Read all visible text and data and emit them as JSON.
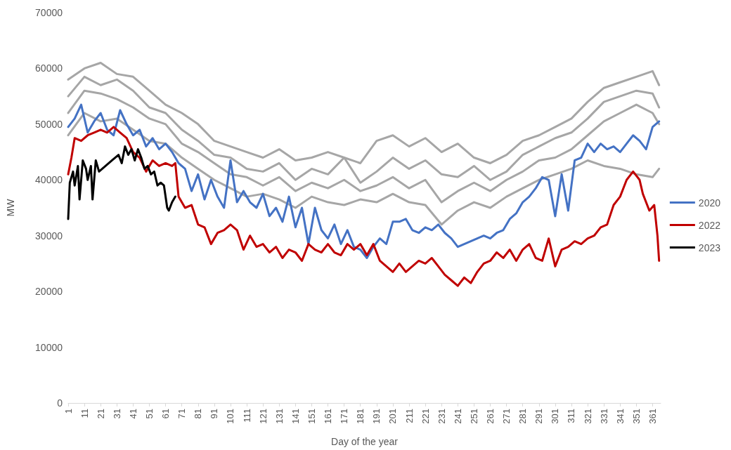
{
  "chart_data": {
    "type": "line",
    "xlabel": "Day of the year",
    "ylabel": "MW",
    "xlim": [
      1,
      366
    ],
    "xticks": [
      1,
      11,
      21,
      31,
      41,
      51,
      61,
      71,
      81,
      91,
      101,
      111,
      121,
      131,
      141,
      151,
      161,
      171,
      181,
      191,
      201,
      211,
      221,
      231,
      241,
      251,
      261,
      271,
      281,
      291,
      301,
      311,
      321,
      331,
      341,
      351,
      361
    ],
    "ylim": [
      0,
      70000
    ],
    "yticks": [
      0,
      10000,
      20000,
      30000,
      40000,
      50000,
      60000,
      70000
    ],
    "grid": false,
    "legend": "right",
    "marker": "none",
    "line_style": "solid",
    "series": [
      {
        "color": "#a6a6a6",
        "x": [
          1,
          11,
          21,
          31,
          41,
          51,
          61,
          71,
          81,
          91,
          101,
          111,
          121,
          131,
          141,
          151,
          161,
          171,
          181,
          191,
          201,
          211,
          221,
          231,
          241,
          251,
          261,
          271,
          281,
          291,
          301,
          311,
          321,
          331,
          341,
          351,
          361,
          365
        ],
        "values": [
          58000,
          60000,
          61000,
          59000,
          58500,
          56000,
          53500,
          52000,
          50000,
          47000,
          46000,
          45000,
          44000,
          45500,
          43500,
          44000,
          45000,
          44000,
          43000,
          47000,
          48000,
          46000,
          47500,
          45000,
          46500,
          44000,
          43000,
          44500,
          47000,
          48000,
          49500,
          51000,
          54000,
          56500,
          57500,
          58500,
          59500,
          57000
        ]
      },
      {
        "color": "#a6a6a6",
        "x": [
          1,
          11,
          21,
          31,
          41,
          51,
          61,
          71,
          81,
          91,
          101,
          111,
          121,
          131,
          141,
          151,
          161,
          171,
          181,
          191,
          201,
          211,
          221,
          231,
          241,
          251,
          261,
          271,
          281,
          291,
          301,
          311,
          321,
          331,
          341,
          351,
          361,
          365
        ],
        "values": [
          55000,
          58500,
          57000,
          58000,
          56000,
          53000,
          52000,
          49000,
          47000,
          44500,
          44000,
          42000,
          41500,
          43000,
          40000,
          42000,
          41000,
          44000,
          39500,
          41500,
          44000,
          42000,
          43500,
          41000,
          40500,
          42500,
          40000,
          41500,
          44500,
          46000,
          47500,
          48500,
          51000,
          54000,
          55000,
          56000,
          55500,
          53000
        ]
      },
      {
        "color": "#a6a6a6",
        "x": [
          1,
          11,
          21,
          31,
          41,
          51,
          61,
          71,
          81,
          91,
          101,
          111,
          121,
          131,
          141,
          151,
          161,
          171,
          181,
          191,
          201,
          211,
          221,
          231,
          241,
          251,
          261,
          271,
          281,
          291,
          301,
          311,
          321,
          331,
          341,
          351,
          361,
          365
        ],
        "values": [
          52000,
          56000,
          55500,
          54500,
          53000,
          51000,
          50000,
          46500,
          45000,
          43000,
          41000,
          40500,
          39000,
          40500,
          38000,
          39500,
          38500,
          40000,
          38000,
          39000,
          40500,
          38500,
          40000,
          36000,
          38000,
          39500,
          38000,
          40000,
          41500,
          43500,
          44000,
          45500,
          48000,
          50500,
          52000,
          53500,
          52000,
          50000
        ]
      },
      {
        "color": "#a6a6a6",
        "x": [
          1,
          11,
          21,
          31,
          41,
          51,
          61,
          71,
          81,
          91,
          101,
          111,
          121,
          131,
          141,
          151,
          161,
          171,
          181,
          191,
          201,
          211,
          221,
          231,
          241,
          251,
          261,
          271,
          281,
          291,
          301,
          311,
          321,
          331,
          341,
          351,
          361,
          365
        ],
        "values": [
          48000,
          52000,
          50500,
          51000,
          49000,
          47000,
          46500,
          44000,
          42000,
          40000,
          38500,
          37000,
          37500,
          36500,
          35000,
          37000,
          36000,
          35500,
          36500,
          36000,
          37500,
          36000,
          35500,
          32000,
          34500,
          36000,
          35000,
          37000,
          38500,
          40000,
          41000,
          42000,
          43500,
          42500,
          42000,
          41000,
          40500,
          42000
        ]
      },
      {
        "name": "2020",
        "color": "#4472c4",
        "x": [
          1,
          5,
          9,
          13,
          17,
          21,
          25,
          29,
          33,
          37,
          41,
          45,
          49,
          53,
          57,
          61,
          65,
          69,
          73,
          77,
          81,
          85,
          89,
          93,
          97,
          101,
          105,
          109,
          113,
          117,
          121,
          125,
          129,
          133,
          137,
          141,
          145,
          149,
          153,
          157,
          161,
          165,
          169,
          173,
          177,
          181,
          185,
          189,
          193,
          197,
          201,
          205,
          209,
          213,
          217,
          221,
          225,
          229,
          233,
          237,
          241,
          245,
          249,
          253,
          257,
          261,
          265,
          269,
          273,
          277,
          281,
          285,
          289,
          293,
          297,
          301,
          305,
          309,
          313,
          317,
          321,
          325,
          329,
          333,
          337,
          341,
          345,
          349,
          353,
          357,
          361,
          365
        ],
        "values": [
          49500,
          51000,
          53500,
          48500,
          50500,
          52000,
          49000,
          48000,
          52500,
          50000,
          48000,
          49000,
          46000,
          47500,
          45500,
          46500,
          45000,
          43000,
          42000,
          38000,
          41000,
          36500,
          40000,
          37000,
          35000,
          43500,
          36000,
          38000,
          36000,
          35000,
          37500,
          33500,
          35000,
          32500,
          37000,
          31500,
          35000,
          28500,
          35000,
          31000,
          29500,
          32000,
          28500,
          31000,
          28000,
          27500,
          26000,
          28000,
          29500,
          28500,
          32500,
          32500,
          33000,
          31000,
          30500,
          31500,
          31000,
          32000,
          30500,
          29500,
          28000,
          28500,
          29000,
          29500,
          30000,
          29500,
          30500,
          31000,
          33000,
          34000,
          36000,
          37000,
          38500,
          40500,
          40000,
          33500,
          41000,
          34500,
          43500,
          44000,
          46500,
          45000,
          46500,
          45500,
          46000,
          45000,
          46500,
          48000,
          47000,
          45500,
          49500,
          50500
        ]
      },
      {
        "name": "2022",
        "color": "#c00000",
        "x": [
          1,
          3,
          5,
          9,
          13,
          17,
          21,
          25,
          29,
          33,
          37,
          41,
          45,
          49,
          53,
          57,
          61,
          65,
          67,
          69,
          73,
          77,
          81,
          85,
          89,
          93,
          97,
          101,
          105,
          109,
          113,
          117,
          121,
          125,
          129,
          133,
          137,
          141,
          145,
          149,
          153,
          157,
          161,
          165,
          169,
          173,
          177,
          181,
          185,
          189,
          193,
          197,
          201,
          205,
          209,
          213,
          217,
          221,
          225,
          229,
          233,
          237,
          241,
          245,
          249,
          253,
          257,
          261,
          265,
          269,
          273,
          277,
          281,
          285,
          289,
          293,
          297,
          301,
          305,
          309,
          313,
          317,
          321,
          325,
          329,
          333,
          337,
          341,
          345,
          349,
          353,
          355,
          359,
          362,
          364,
          365
        ],
        "values": [
          41000,
          44000,
          47500,
          47000,
          48000,
          48500,
          49000,
          48500,
          49500,
          48500,
          47500,
          45000,
          44000,
          41500,
          43500,
          42500,
          43000,
          42500,
          43000,
          37000,
          35000,
          35500,
          32000,
          31500,
          28500,
          30500,
          31000,
          32000,
          31000,
          27500,
          30000,
          28000,
          28500,
          27000,
          28000,
          26000,
          27500,
          27000,
          25500,
          28500,
          27500,
          27000,
          28500,
          27000,
          26500,
          28500,
          27500,
          28500,
          26500,
          28500,
          25500,
          24500,
          23500,
          25000,
          23500,
          24500,
          25500,
          25000,
          26000,
          24500,
          23000,
          22000,
          21000,
          22500,
          21500,
          23500,
          25000,
          25500,
          27000,
          26000,
          27500,
          25500,
          27500,
          28500,
          26000,
          25500,
          29500,
          24500,
          27500,
          28000,
          29000,
          28500,
          29500,
          30000,
          31500,
          32000,
          35500,
          37000,
          40000,
          41500,
          40000,
          37500,
          34500,
          35500,
          30000,
          25500
        ]
      },
      {
        "name": "2023",
        "color": "#000000",
        "x": [
          1,
          2,
          4,
          5,
          7,
          8,
          10,
          12,
          13,
          15,
          16,
          18,
          20,
          24,
          28,
          32,
          34,
          36,
          38,
          40,
          42,
          44,
          46,
          48,
          50,
          52,
          54,
          56,
          58,
          60,
          62,
          63,
          65,
          67
        ],
        "values": [
          33000,
          39500,
          41500,
          39000,
          42500,
          36500,
          43500,
          42000,
          40000,
          42500,
          36500,
          43500,
          41500,
          42500,
          43500,
          44500,
          43000,
          46000,
          44500,
          45500,
          43500,
          45500,
          44000,
          42000,
          42500,
          41000,
          41500,
          39000,
          39500,
          39000,
          35000,
          34500,
          36000,
          37000
        ]
      }
    ]
  }
}
